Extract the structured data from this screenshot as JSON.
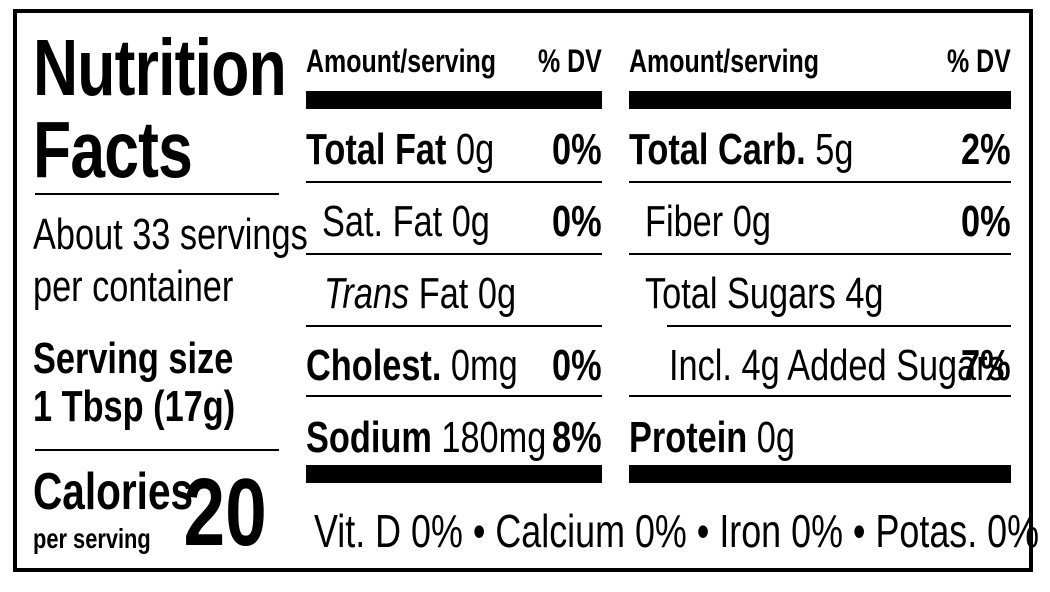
{
  "title_line1": "Nutrition",
  "title_line2": "Facts",
  "servings_line1": "About 33 servings",
  "servings_line2": "per container",
  "serving_size_label": "Serving size",
  "serving_size_value": "1 Tbsp (17g)",
  "calories_label": "Calories",
  "calories_sub": "per serving",
  "calories_value": "20",
  "left_table": {
    "header_amount": "Amount/serving",
    "header_dv": "% DV",
    "rows": [
      {
        "name": "Total Fat",
        "amount": "0g",
        "dv": "0%"
      },
      {
        "name": "Sat. Fat",
        "amount": "0g",
        "dv": "0%"
      },
      {
        "name_italic": "Trans",
        "name": "Fat",
        "amount": "0g",
        "dv": ""
      },
      {
        "name": "Cholest.",
        "amount": "0mg",
        "dv": "0%"
      },
      {
        "name": "Sodium",
        "amount": "180mg",
        "dv": "8%"
      }
    ]
  },
  "right_table": {
    "header_amount": "Amount/serving",
    "header_dv": "% DV",
    "rows": [
      {
        "name": "Total Carb.",
        "amount": "5g",
        "dv": "2%"
      },
      {
        "name": "Fiber",
        "amount": "0g",
        "dv": "0%"
      },
      {
        "name": "Total Sugars",
        "amount": "4g",
        "dv": ""
      },
      {
        "name": "Incl. 4g Added Sugars",
        "amount": "",
        "dv": "7%"
      },
      {
        "name": "Protein",
        "amount": "0g",
        "dv": ""
      }
    ]
  },
  "footer": "Vit. D 0% • Calcium 0% • Iron 0% • Potas. 0%"
}
